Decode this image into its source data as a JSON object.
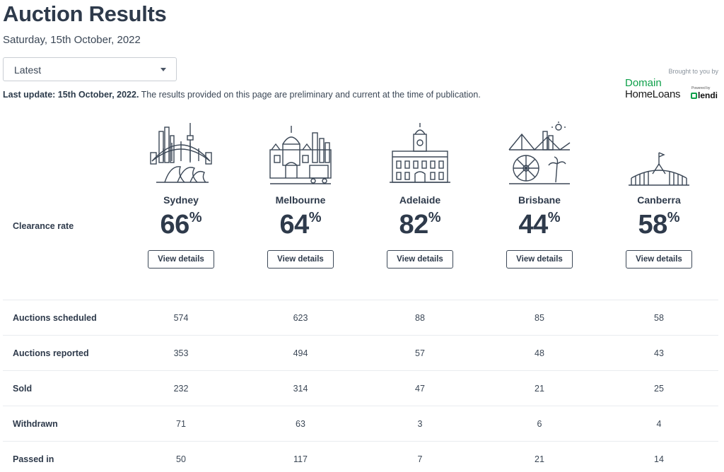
{
  "header": {
    "title": "Auction Results",
    "date": "Saturday, 15th October, 2022"
  },
  "filter": {
    "selected": "Latest"
  },
  "sponsor": {
    "brought_by": "Brought to you by",
    "line1": "Domain",
    "line2": "HomeLoans",
    "powered": "Powered by",
    "partner": "lendi"
  },
  "update": {
    "bold": "Last update: 15th October, 2022.",
    "text": " The results provided on this page are preliminary and current at the time of publication."
  },
  "clearance_label": "Clearance rate",
  "cities": [
    {
      "name": "Sydney",
      "rate": "66",
      "pct": "%",
      "button": "View details",
      "icon": "sydney-skyline-icon"
    },
    {
      "name": "Melbourne",
      "rate": "64",
      "pct": "%",
      "button": "View details",
      "icon": "melbourne-skyline-icon"
    },
    {
      "name": "Adelaide",
      "rate": "82",
      "pct": "%",
      "button": "View details",
      "icon": "adelaide-town-hall-icon"
    },
    {
      "name": "Brisbane",
      "rate": "44",
      "pct": "%",
      "button": "View details",
      "icon": "brisbane-skyline-icon"
    },
    {
      "name": "Canberra",
      "rate": "58",
      "pct": "%",
      "button": "View details",
      "icon": "canberra-parliament-icon"
    }
  ],
  "table": {
    "rows": [
      {
        "label": "Auctions scheduled",
        "values": [
          "574",
          "623",
          "88",
          "85",
          "58"
        ]
      },
      {
        "label": "Auctions reported",
        "values": [
          "353",
          "494",
          "57",
          "48",
          "43"
        ]
      },
      {
        "label": "Sold",
        "values": [
          "232",
          "314",
          "47",
          "21",
          "25"
        ]
      },
      {
        "label": "Withdrawn",
        "values": [
          "71",
          "63",
          "3",
          "6",
          "4"
        ]
      },
      {
        "label": "Passed in",
        "values": [
          "50",
          "117",
          "7",
          "21",
          "14"
        ]
      }
    ]
  }
}
